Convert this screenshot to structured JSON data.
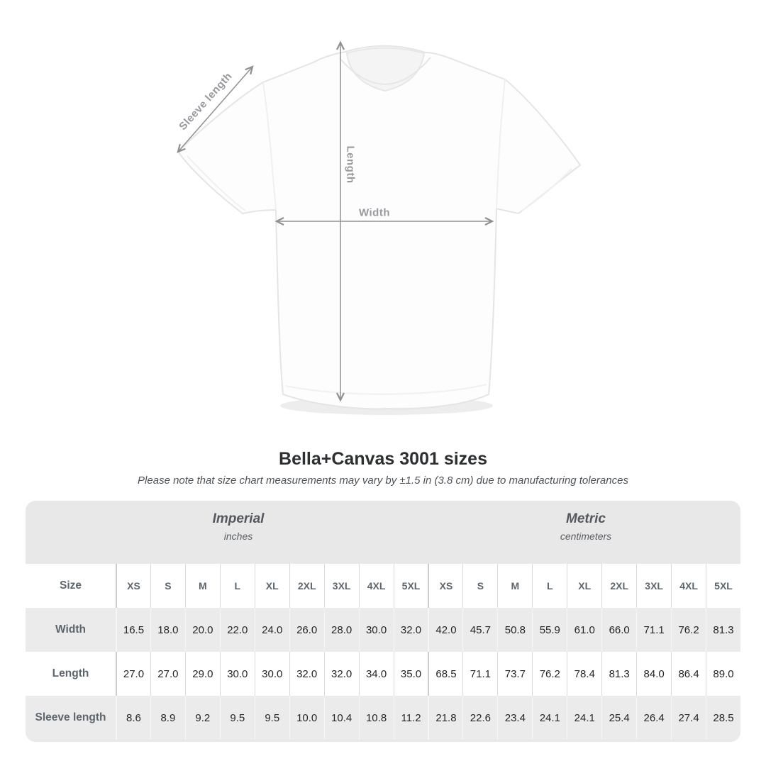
{
  "header": {
    "title": "Bella+Canvas 3001 sizes",
    "subtitle": "Please note that size chart measurements may vary by ±1.5 in (3.8 cm) due to manufacturing tolerances"
  },
  "diagram": {
    "labels": {
      "sleeve_length": "Sleeve length",
      "length": "Length",
      "width": "Width"
    }
  },
  "size_chart": {
    "column_groups": [
      {
        "label": "Imperial",
        "unit": "inches"
      },
      {
        "label": "Metric",
        "unit": "centimeters"
      }
    ],
    "size_header": "Size",
    "sizes": [
      "XS",
      "S",
      "M",
      "L",
      "XL",
      "2XL",
      "3XL",
      "4XL",
      "5XL"
    ],
    "rows": [
      {
        "label": "Width",
        "imperial": [
          "16.5",
          "18.0",
          "20.0",
          "22.0",
          "24.0",
          "26.0",
          "28.0",
          "30.0",
          "32.0"
        ],
        "metric": [
          "42.0",
          "45.7",
          "50.8",
          "55.9",
          "61.0",
          "66.0",
          "71.1",
          "76.2",
          "81.3"
        ]
      },
      {
        "label": "Length",
        "imperial": [
          "27.0",
          "27.0",
          "29.0",
          "30.0",
          "30.0",
          "32.0",
          "32.0",
          "34.0",
          "35.0"
        ],
        "metric": [
          "68.5",
          "71.1",
          "73.7",
          "76.2",
          "78.4",
          "81.3",
          "84.0",
          "86.4",
          "89.0"
        ]
      },
      {
        "label": "Sleeve length",
        "imperial": [
          "8.6",
          "8.9",
          "9.2",
          "9.5",
          "9.5",
          "10.0",
          "10.4",
          "10.8",
          "11.2"
        ],
        "metric": [
          "21.8",
          "22.6",
          "23.4",
          "24.1",
          "24.1",
          "25.4",
          "26.4",
          "27.4",
          "28.5"
        ]
      }
    ]
  },
  "colors": {
    "card_bg": "#e8e8e8",
    "row_alt_bg": "#ebebeb",
    "row_bg": "#ffffff",
    "label_text": "#5d666d",
    "value_text": "#232527",
    "arrow": "#8f9194",
    "diagram_label": "#97999c",
    "title_text": "#2d2f31"
  },
  "chart_data": {
    "type": "table",
    "title": "Bella+Canvas 3001 sizes",
    "subtitle": "Please note that size chart measurements may vary by ±1.5 in (3.8 cm) due to manufacturing tolerances",
    "column_groups": [
      "Imperial (inches)",
      "Metric (centimeters)"
    ],
    "sizes": [
      "XS",
      "S",
      "M",
      "L",
      "XL",
      "2XL",
      "3XL",
      "4XL",
      "5XL"
    ],
    "rows": [
      {
        "measurement": "Width",
        "imperial_in": [
          16.5,
          18.0,
          20.0,
          22.0,
          24.0,
          26.0,
          28.0,
          30.0,
          32.0
        ],
        "metric_cm": [
          42.0,
          45.7,
          50.8,
          55.9,
          61.0,
          66.0,
          71.1,
          76.2,
          81.3
        ]
      },
      {
        "measurement": "Length",
        "imperial_in": [
          27.0,
          27.0,
          29.0,
          30.0,
          30.0,
          32.0,
          32.0,
          34.0,
          35.0
        ],
        "metric_cm": [
          68.5,
          71.1,
          73.7,
          76.2,
          78.4,
          81.3,
          84.0,
          86.4,
          89.0
        ]
      },
      {
        "measurement": "Sleeve length",
        "imperial_in": [
          8.6,
          8.9,
          9.2,
          9.5,
          9.5,
          10.0,
          10.4,
          10.8,
          11.2
        ],
        "metric_cm": [
          21.8,
          22.6,
          23.4,
          24.1,
          24.1,
          25.4,
          26.4,
          27.4,
          28.5
        ]
      }
    ]
  }
}
